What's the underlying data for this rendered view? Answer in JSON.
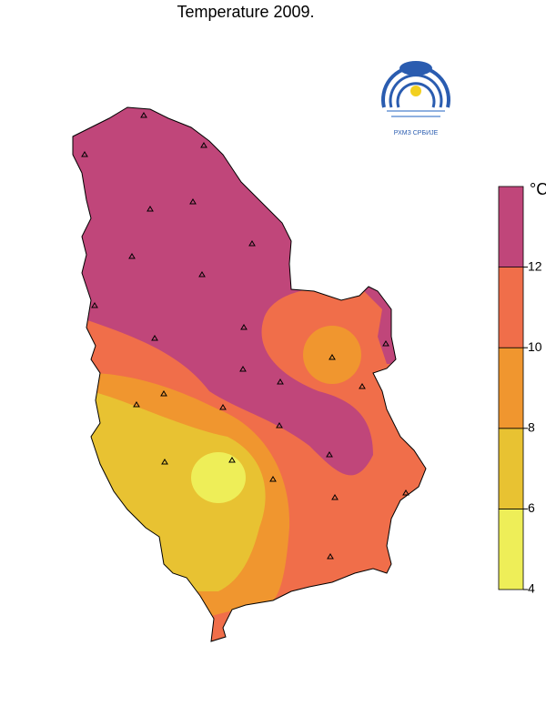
{
  "title": "Temperature 2009.",
  "logo_text": "РХМЗ СРБИЈЕ",
  "legend": {
    "unit": "°C",
    "ticks": [
      4,
      6,
      8,
      10,
      12
    ],
    "colors": [
      "#eeee58",
      "#e8c232",
      "#f0962f",
      "#f06e4a",
      "#c0467a"
    ]
  }
}
